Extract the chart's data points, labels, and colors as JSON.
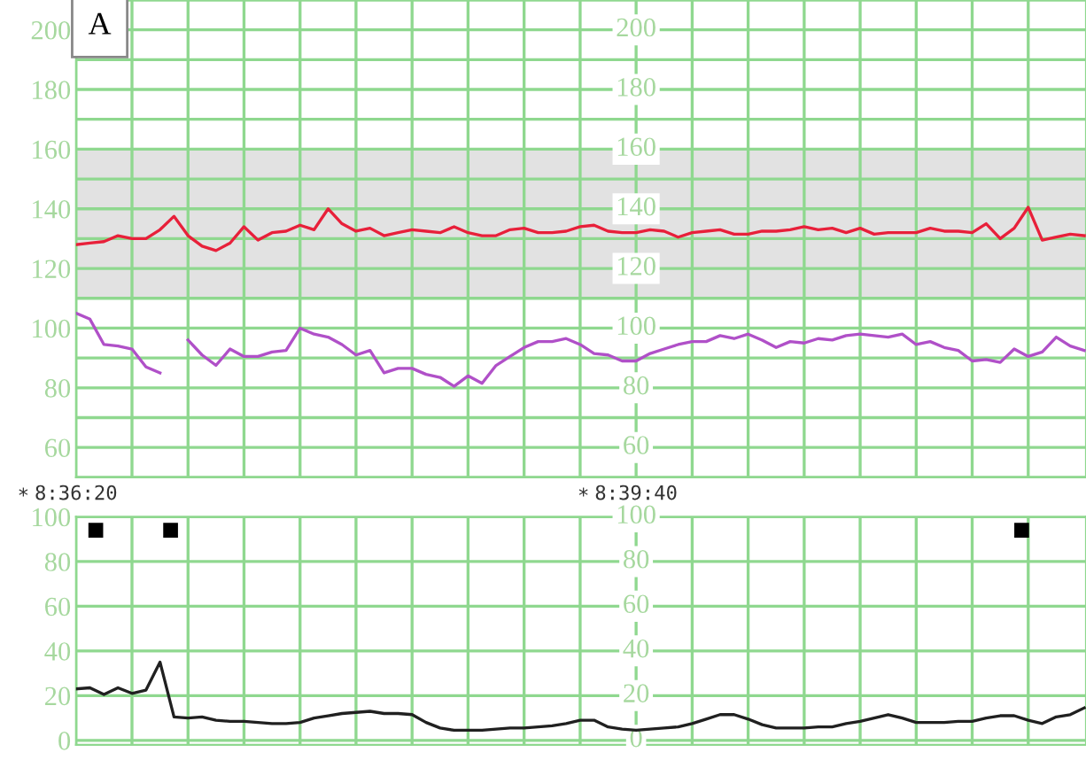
{
  "chart_data": [
    {
      "type": "line",
      "annotations": [
        "A",
        "*",
        "*"
      ],
      "x": [
        8.60556,
        8.60694,
        8.60833,
        8.60972,
        8.61111,
        8.6125,
        8.61389,
        8.61528,
        8.61667,
        8.61806,
        8.61944,
        8.62083,
        8.62222,
        8.62361,
        8.625,
        8.62639,
        8.62778,
        8.62917,
        8.63056,
        8.63194,
        8.63333,
        8.63472,
        8.63611,
        8.6375,
        8.63889,
        8.64028,
        8.64167,
        8.64306,
        8.64444,
        8.64583,
        8.64722,
        8.64861,
        8.65,
        8.65139,
        8.65278,
        8.65417,
        8.65556,
        8.65694,
        8.65833,
        8.65972,
        8.66111,
        8.6625,
        8.66389,
        8.66528,
        8.66667,
        8.66806,
        8.66944,
        8.67083,
        8.67222,
        8.67361,
        8.675,
        8.67639,
        8.67778,
        8.67917,
        8.68056,
        8.68194,
        8.68333,
        8.68472,
        8.68611,
        8.6875,
        8.68889,
        8.69028,
        8.69167,
        8.69306,
        8.69444,
        8.69583,
        8.69722,
        8.69861,
        8.7,
        8.70139,
        8.70278,
        8.70417,
        8.70556
      ],
      "series": [
        {
          "color": "#e8203a",
          "values": [
            128,
            128.5,
            129,
            131,
            130,
            130,
            133,
            137.5,
            131,
            127.5,
            126,
            128.5,
            134,
            129.5,
            132,
            132.5,
            134.5,
            133,
            140,
            135,
            132.5,
            133.5,
            131,
            132,
            133,
            132.5,
            132,
            134,
            132,
            131,
            131,
            133,
            133.5,
            132,
            132,
            132.5,
            134,
            134.5,
            132.5,
            132,
            132,
            133,
            132.5,
            130.5,
            132,
            132.5,
            133,
            131.5,
            131.5,
            132.5,
            132.5,
            133,
            134,
            133,
            133.5,
            132,
            133.5,
            131.5,
            132,
            132,
            132,
            133.5,
            132.5,
            132.5,
            132,
            135,
            130,
            133.5,
            140.5,
            129.5,
            130.5,
            131.5,
            131
          ]
        },
        {
          "color": "#b050c8",
          "values": [
            105,
            103,
            94.5,
            94,
            93,
            87,
            85,
            null,
            96,
            91,
            87.5,
            93,
            90.5,
            90.5,
            92,
            92.5,
            100,
            98,
            97,
            94.5,
            91,
            92.5,
            85,
            86.5,
            86.5,
            84.5,
            83.5,
            80.5,
            84,
            81.5,
            87.5,
            90.5,
            93.5,
            95.5,
            95.5,
            96.5,
            94.5,
            91.5,
            91,
            89,
            89,
            91.5,
            93,
            94.5,
            95.5,
            95.5,
            97.5,
            96.5,
            98,
            96,
            93.5,
            95.5,
            95,
            96.5,
            96,
            97.5,
            98,
            97.5,
            97,
            98,
            94.5,
            95.5,
            93.5,
            92.5,
            89,
            89.5,
            88.5,
            93,
            90.5,
            92,
            97,
            94,
            92.5
          ]
        }
      ],
      "bands": [
        {
          "axis": "y",
          "from": 110,
          "to": 160,
          "color": "#e2e2e2"
        }
      ],
      "xlim": [
        8.60556,
        8.70573
      ],
      "xticks": [
        {
          "value": 8.60556,
          "label": "8:36:20"
        },
        {
          "value": 8.61111,
          "label": null
        },
        {
          "value": 8.61667,
          "label": null
        },
        {
          "value": 8.62222,
          "label": null
        },
        {
          "value": 8.62778,
          "label": null
        },
        {
          "value": 8.63333,
          "label": null
        },
        {
          "value": 8.63889,
          "label": null
        },
        {
          "value": 8.64444,
          "label": null
        },
        {
          "value": 8.65,
          "label": null
        },
        {
          "value": 8.65556,
          "label": null
        },
        {
          "value": 8.66111,
          "label": "8:39:40"
        },
        {
          "value": 8.66667,
          "label": null
        },
        {
          "value": 8.67222,
          "label": null
        },
        {
          "value": 8.67778,
          "label": null
        },
        {
          "value": 8.68333,
          "label": null
        },
        {
          "value": 8.68889,
          "label": null
        },
        {
          "value": 8.69444,
          "label": null
        },
        {
          "value": 8.7,
          "label": null
        }
      ],
      "ylim": [
        50,
        210
      ],
      "yticks": [
        {
          "value": 50,
          "label": null
        },
        60,
        {
          "value": 70,
          "label": null
        },
        80,
        {
          "value": 90,
          "label": null
        },
        100,
        {
          "value": 110,
          "label": null
        },
        120,
        {
          "value": 130,
          "label": null
        },
        140,
        {
          "value": 150,
          "label": null
        },
        160,
        {
          "value": 170,
          "label": null
        },
        180,
        {
          "value": 190,
          "label": null
        },
        200,
        {
          "value": 210,
          "label": null
        }
      ],
      "y2lim": [
        50,
        210
      ],
      "y2ticks": [
        60,
        80,
        100,
        120,
        140,
        160,
        180,
        200
      ],
      "grid": true,
      "marker": "none",
      "line_style": "solid"
    },
    {
      "type": "line",
      "tick_labels": "y",
      "x": [
        8.60556,
        8.60694,
        8.60833,
        8.60972,
        8.61111,
        8.6125,
        8.61389,
        8.61528,
        8.61667,
        8.61806,
        8.61944,
        8.62083,
        8.62222,
        8.62361,
        8.625,
        8.62639,
        8.62778,
        8.62917,
        8.63056,
        8.63194,
        8.63333,
        8.63472,
        8.63611,
        8.6375,
        8.63889,
        8.64028,
        8.64167,
        8.64306,
        8.64444,
        8.64583,
        8.64722,
        8.64861,
        8.65,
        8.65139,
        8.65278,
        8.65417,
        8.65556,
        8.65694,
        8.65833,
        8.65972,
        8.66111,
        8.6625,
        8.66389,
        8.66528,
        8.66667,
        8.66806,
        8.66944,
        8.67083,
        8.67222,
        8.67361,
        8.675,
        8.67639,
        8.67778,
        8.67917,
        8.68056,
        8.68194,
        8.68333,
        8.68472,
        8.68611,
        8.6875,
        8.68889,
        8.69028,
        8.69167,
        8.69306,
        8.69444,
        8.69583,
        8.69722,
        8.69861,
        8.7,
        8.70139,
        8.70278,
        8.70417,
        8.70556
      ],
      "series": [
        {
          "color": "#202020",
          "values": [
            23,
            23.5,
            20.5,
            23.5,
            21,
            22.5,
            35,
            10.5,
            10,
            10.5,
            9,
            8.5,
            8.5,
            8,
            7.5,
            7.5,
            8,
            10,
            11,
            12,
            12.5,
            13,
            12,
            12,
            11.5,
            8,
            5.5,
            4.5,
            4.5,
            4.5,
            5,
            5.5,
            5.5,
            6,
            6.5,
            7.5,
            9,
            9,
            6,
            5,
            4.5,
            5,
            5.5,
            6,
            7.5,
            9.5,
            11.5,
            11.5,
            9.5,
            7,
            5.5,
            5.5,
            5.5,
            6,
            6,
            7.5,
            8.5,
            10,
            11.5,
            10,
            8,
            8,
            8,
            8.5,
            8.5,
            10,
            11,
            11,
            9,
            7.5,
            10.5,
            11.5,
            14.5
          ]
        },
        {
          "type": "scatter",
          "marker": "square",
          "color": "#000000",
          "x": [
            8.60752,
            8.61494,
            8.69935
          ],
          "values": [
            94,
            94,
            94
          ]
        }
      ],
      "xlim": [
        8.60556,
        8.70573
      ],
      "xticks": [
        8.60556,
        8.61111,
        8.61667,
        8.62222,
        8.62778,
        8.63333,
        8.63889,
        8.64444,
        8.65,
        8.65556,
        8.66111,
        8.66667,
        8.67222,
        8.67778,
        8.68333,
        8.68889,
        8.69444,
        8.7
      ],
      "ylim": [
        -2,
        100
      ],
      "yticks": [
        0,
        20,
        40,
        60,
        80,
        100
      ],
      "y2lim": [
        -2,
        100
      ],
      "y2ticks": [
        0,
        20,
        40,
        60,
        80,
        100
      ],
      "grid": true,
      "marker": "none",
      "line_style": "solid"
    }
  ]
}
